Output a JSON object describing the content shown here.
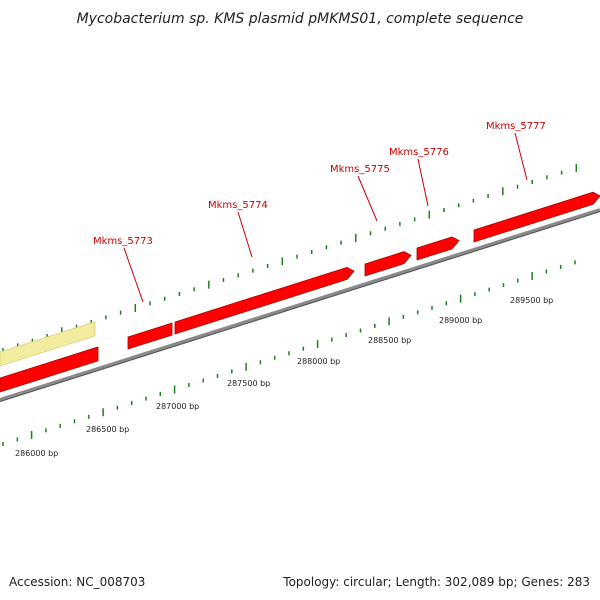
{
  "title": "Mycobacterium sp. KMS plasmid pMKMS01, complete sequence",
  "footer": {
    "accession": "Accession: NC_008703",
    "summary": "Topology: circular; Length: 302,089 bp; Genes: 283"
  },
  "colors": {
    "gene": "#ff0000",
    "gene_dark": "#b00000",
    "pseudo_gene": "#f2ec9e",
    "backbone": "#888888",
    "gc_ticks": "#1f7f1f",
    "gene_label": "#cc0000"
  },
  "genes": [
    {
      "label": "Mkms_5773"
    },
    {
      "label": "Mkms_5774"
    },
    {
      "label": "Mkms_5775"
    },
    {
      "label": "Mkms_5776"
    },
    {
      "label": "Mkms_5777"
    }
  ],
  "scale": {
    "labels": [
      "286000 bp",
      "286500 bp",
      "287000 bp",
      "287500 bp",
      "288000 bp",
      "288500 bp",
      "289000 bp",
      "289500 bp"
    ]
  }
}
